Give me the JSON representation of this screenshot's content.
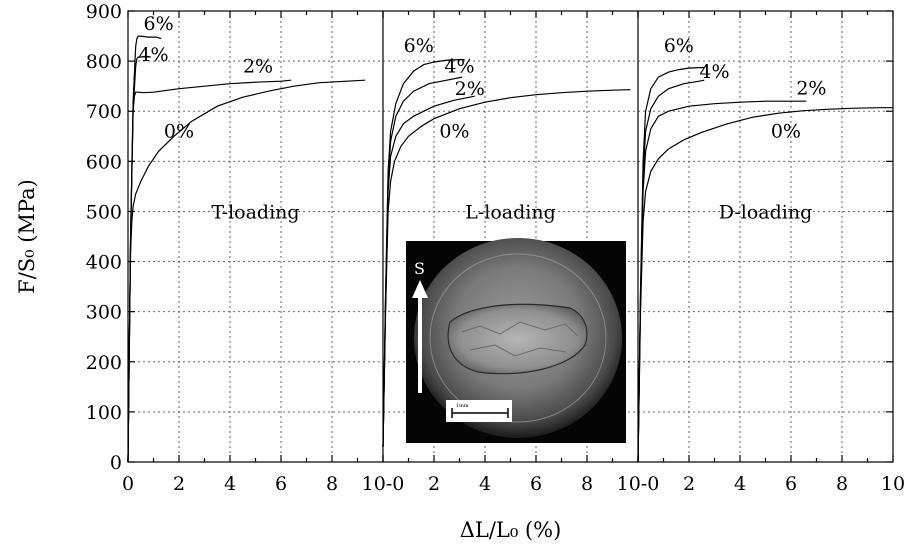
{
  "chart_data": {
    "type": "line",
    "xlabel": "ΔL/L₀ (%)",
    "ylabel": "F/S₀ (MPa)",
    "ylim": [
      0,
      900
    ],
    "yticks": [
      0,
      100,
      200,
      300,
      400,
      500,
      600,
      700,
      800,
      900
    ],
    "x_tick_labels": [
      "0",
      "2",
      "4",
      "6",
      "8",
      "10-0",
      "2",
      "4",
      "6",
      "8",
      "10-0",
      "2",
      "4",
      "6",
      "8",
      "10"
    ],
    "grid": true,
    "panels": [
      {
        "title": "T-loading",
        "xlim": [
          0,
          10
        ],
        "series": [
          {
            "name": "0%",
            "x": [
              0,
              0.05,
              0.1,
              0.15,
              0.2,
              0.3,
              0.5,
              0.8,
              1.2,
              1.8,
              2.5,
              3.5,
              4.5,
              5.5,
              6.5,
              7.5,
              9.3
            ],
            "y": [
              0,
              250,
              420,
              480,
              510,
              535,
              560,
              590,
              620,
              650,
              680,
              710,
              728,
              740,
              750,
              757,
              762
            ]
          },
          {
            "name": "2%",
            "x": [
              0,
              0.1,
              0.2,
              0.25,
              0.3,
              0.4,
              0.6,
              1.0,
              2.0,
              3.0,
              4.0,
              5.0,
              6.0,
              6.4
            ],
            "y": [
              0,
              450,
              700,
              730,
              738,
              738,
              737,
              738,
              745,
              750,
              755,
              758,
              760,
              762
            ]
          },
          {
            "name": "4%",
            "x": [
              0,
              0.1,
              0.2,
              0.3,
              0.35,
              0.4,
              0.5,
              0.7,
              0.9
            ],
            "y": [
              0,
              450,
              700,
              790,
              805,
              808,
              808,
              810,
              808
            ]
          },
          {
            "name": "6%",
            "x": [
              0,
              0.1,
              0.2,
              0.3,
              0.35,
              0.4,
              0.5,
              0.8,
              1.1,
              1.3
            ],
            "y": [
              0,
              450,
              720,
              830,
              845,
              850,
              850,
              848,
              848,
              845
            ]
          }
        ],
        "labels": [
          {
            "text": "6%",
            "x": 1.2,
            "y": 862
          },
          {
            "text": "4%",
            "x": 1.0,
            "y": 800
          },
          {
            "text": "2%",
            "x": 5.1,
            "y": 777
          },
          {
            "text": "0%",
            "x": 2.0,
            "y": 648
          }
        ]
      },
      {
        "title": "L-loading",
        "xlim": [
          0,
          10
        ],
        "series": [
          {
            "name": "0%",
            "x": [
              0,
              0.1,
              0.2,
              0.3,
              0.45,
              0.7,
              1.0,
              1.5,
              2.0,
              3.0,
              4.0,
              5.0,
              6.0,
              7.0,
              8.0,
              9.0,
              9.7
            ],
            "y": [
              30,
              300,
              500,
              560,
              600,
              630,
              650,
              670,
              685,
              705,
              718,
              727,
              733,
              737,
              740,
              742,
              743
            ]
          },
          {
            "name": "2%",
            "x": [
              0,
              0.1,
              0.2,
              0.3,
              0.5,
              0.8,
              1.2,
              2.0,
              2.8,
              3.6
            ],
            "y": [
              30,
              320,
              540,
              610,
              650,
              675,
              690,
              710,
              722,
              730
            ]
          },
          {
            "name": "4%",
            "x": [
              0,
              0.1,
              0.2,
              0.3,
              0.5,
              0.8,
              1.2,
              1.8,
              2.5,
              3.1
            ],
            "y": [
              30,
              330,
              560,
              640,
              690,
              720,
              740,
              755,
              762,
              768
            ]
          },
          {
            "name": "6%",
            "x": [
              0,
              0.1,
              0.2,
              0.3,
              0.5,
              0.8,
              1.2,
              1.6,
              2.0,
              2.5,
              3.0,
              3.2
            ],
            "y": [
              30,
              340,
              580,
              660,
              715,
              755,
              780,
              793,
              798,
              802,
              803,
              803
            ]
          }
        ],
        "labels": [
          {
            "text": "6%",
            "x": 1.4,
            "y": 818
          },
          {
            "text": "4%",
            "x": 3.0,
            "y": 777
          },
          {
            "text": "2%",
            "x": 3.4,
            "y": 732
          },
          {
            "text": "0%",
            "x": 2.8,
            "y": 648
          }
        ]
      },
      {
        "title": "D-loading",
        "xlim": [
          0,
          10
        ],
        "series": [
          {
            "name": "0%",
            "x": [
              0,
              0.1,
              0.2,
              0.3,
              0.5,
              0.8,
              1.2,
              1.8,
              2.5,
              3.5,
              4.5,
              5.5,
              6.5,
              7.5,
              8.5,
              9.5,
              10
            ],
            "y": [
              0,
              300,
              480,
              540,
              580,
              605,
              625,
              643,
              658,
              675,
              688,
              696,
              701,
              704,
              706,
              707,
              707
            ]
          },
          {
            "name": "2%",
            "x": [
              0,
              0.1,
              0.2,
              0.3,
              0.5,
              0.8,
              1.2,
              2.0,
              3.0,
              4.0,
              5.0,
              6.0,
              6.6
            ],
            "y": [
              0,
              320,
              540,
              620,
              665,
              690,
              700,
              710,
              715,
              718,
              720,
              720,
              720
            ]
          },
          {
            "name": "4%",
            "x": [
              0,
              0.1,
              0.2,
              0.3,
              0.5,
              0.8,
              1.2,
              1.8,
              2.4,
              2.6
            ],
            "y": [
              0,
              330,
              570,
              660,
              705,
              730,
              745,
              755,
              760,
              762
            ]
          },
          {
            "name": "6%",
            "x": [
              0,
              0.1,
              0.2,
              0.3,
              0.5,
              0.8,
              1.2,
              1.6,
              2.0,
              2.4,
              2.6
            ],
            "y": [
              0,
              340,
              600,
              700,
              745,
              768,
              778,
              783,
              786,
              787,
              787
            ]
          }
        ],
        "labels": [
          {
            "text": "6%",
            "x": 1.6,
            "y": 818
          },
          {
            "text": "4%",
            "x": 3.0,
            "y": 766
          },
          {
            "text": "2%",
            "x": 6.8,
            "y": 733
          },
          {
            "text": "0%",
            "x": 5.8,
            "y": 648
          }
        ]
      }
    ],
    "inset": {
      "description": "fractograph",
      "arrow_label": "S",
      "scale_bar_label": "1mm"
    }
  }
}
